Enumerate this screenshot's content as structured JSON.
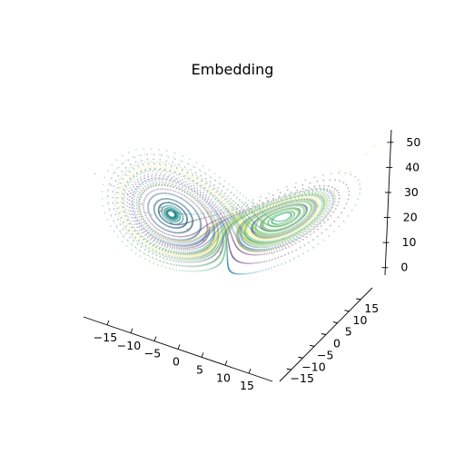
{
  "chart_data": {
    "type": "scatter",
    "projection": "3d",
    "title": "Embedding",
    "xlabel": "",
    "ylabel": "",
    "zlabel": "",
    "xlim": [
      -20,
      20
    ],
    "ylim": [
      -20,
      20
    ],
    "zlim": [
      -3,
      55
    ],
    "x_ticks": [
      -15,
      -10,
      -5,
      0,
      5,
      10,
      15
    ],
    "y_ticks": [
      -15,
      -10,
      -5,
      0,
      5,
      10,
      15
    ],
    "z_ticks": [
      0,
      10,
      20,
      30,
      40,
      50
    ],
    "x_tick_labels": [
      "−15",
      "−10",
      "−5",
      "0",
      "5",
      "10",
      "15"
    ],
    "y_tick_labels": [
      "−15",
      "−10",
      "−5",
      "0",
      "5",
      "10",
      "15"
    ],
    "z_tick_labels": [
      "0",
      "10",
      "20",
      "30",
      "40",
      "50"
    ],
    "colormap": "viridis",
    "marker_alpha": 0.35,
    "grid": false,
    "series": [
      {
        "description_values": "Lorenz-attractor-like time-delay embedding trajectory; color encodes time (viridis, dark purple to yellow)",
        "points_xyz": [
          [
            -8.0,
            -8.0,
            27.0
          ],
          [
            -6.0,
            -9.0,
            24.0
          ],
          [
            -9.0,
            -6.0,
            25.0
          ],
          [
            -11.0,
            -9.0,
            28.0
          ],
          [
            -7.0,
            -11.0,
            30.0
          ],
          [
            -4.0,
            -7.0,
            22.0
          ],
          [
            -10.0,
            -4.0,
            23.0
          ],
          [
            -13.0,
            -10.0,
            31.0
          ],
          [
            -6.0,
            -13.0,
            32.0
          ],
          [
            -2.0,
            -5.0,
            18.0
          ],
          [
            -12.0,
            -2.0,
            20.0
          ],
          [
            -15.0,
            -12.0,
            34.0
          ],
          [
            -4.0,
            -15.0,
            36.0
          ],
          [
            0.0,
            -3.0,
            14.0
          ],
          [
            -14.0,
            1.0,
            18.0
          ],
          [
            -17.0,
            -14.0,
            38.0
          ],
          [
            5.0,
            8.0,
            22.0
          ],
          [
            9.0,
            12.0,
            28.0
          ],
          [
            12.0,
            9.0,
            32.0
          ],
          [
            8.0,
            4.0,
            20.0
          ],
          [
            4.0,
            6.0,
            17.0
          ],
          [
            11.0,
            14.0,
            35.0
          ],
          [
            14.0,
            11.0,
            38.0
          ],
          [
            7.0,
            2.0,
            15.0
          ],
          [
            13.0,
            16.0,
            42.0
          ],
          [
            16.0,
            13.0,
            45.0
          ],
          [
            17.0,
            17.0,
            50.0
          ],
          [
            18.0,
            18.0,
            53.0
          ]
        ]
      }
    ]
  }
}
